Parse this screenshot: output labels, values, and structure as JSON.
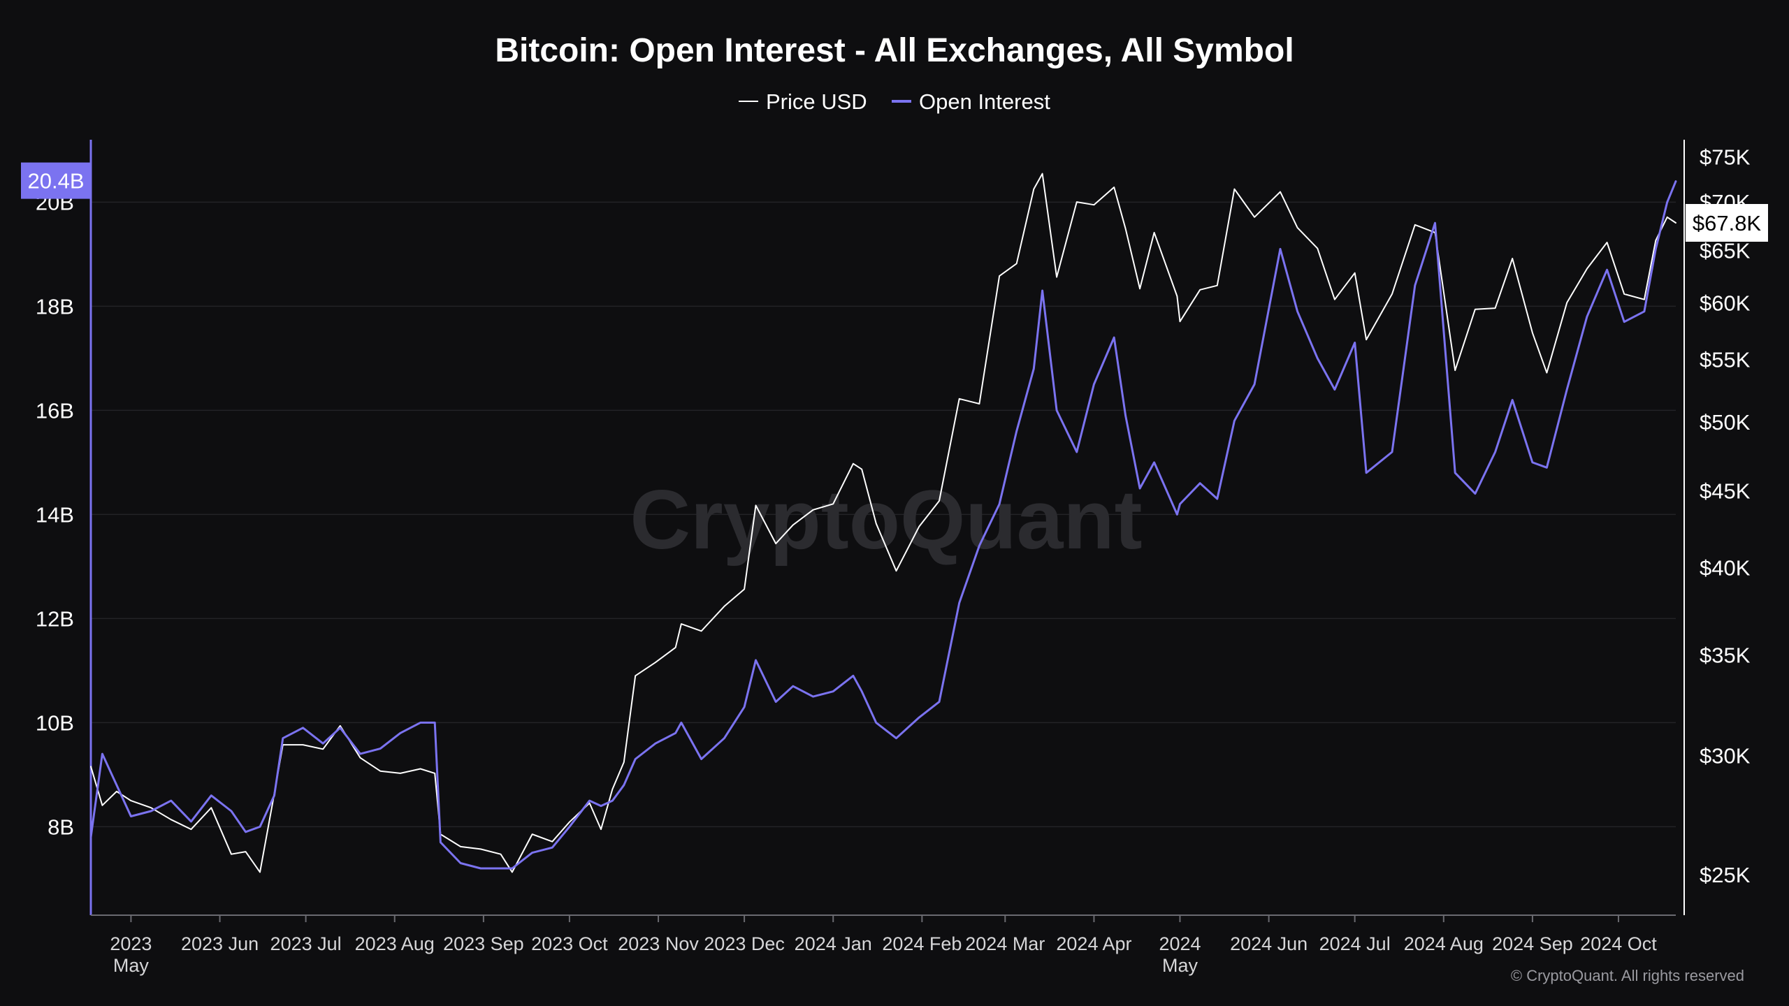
{
  "chart_data": {
    "type": "line",
    "title": "Bitcoin: Open Interest - All Exchanges, All Symbol",
    "legend": {
      "placement": "top-center",
      "entries": [
        {
          "name": "Price USD",
          "color": "#ffffff"
        },
        {
          "name": "Open Interest",
          "color": "#7b73f0"
        }
      ]
    },
    "watermark": "CryptoQuant",
    "copyright": "© CryptoQuant. All rights reserved",
    "grid": true,
    "x_axis": {
      "range": [
        "2023-04-17",
        "2024-10-21"
      ],
      "ticks": [
        {
          "date": "2023-05-01",
          "label": "2023",
          "sublabel": "May"
        },
        {
          "date": "2023-06-01",
          "label": "2023 Jun"
        },
        {
          "date": "2023-07-01",
          "label": "2023 Jul"
        },
        {
          "date": "2023-08-01",
          "label": "2023 Aug"
        },
        {
          "date": "2023-09-01",
          "label": "2023 Sep"
        },
        {
          "date": "2023-10-01",
          "label": "2023 Oct"
        },
        {
          "date": "2023-11-01",
          "label": "2023 Nov"
        },
        {
          "date": "2023-12-01",
          "label": "2023 Dec"
        },
        {
          "date": "2024-01-01",
          "label": "2024 Jan"
        },
        {
          "date": "2024-02-01",
          "label": "2024 Feb"
        },
        {
          "date": "2024-03-01",
          "label": "2024 Mar"
        },
        {
          "date": "2024-04-01",
          "label": "2024 Apr"
        },
        {
          "date": "2024-05-01",
          "label": "2024",
          "sublabel": "May"
        },
        {
          "date": "2024-06-01",
          "label": "2024 Jun"
        },
        {
          "date": "2024-07-01",
          "label": "2024 Jul"
        },
        {
          "date": "2024-08-01",
          "label": "2024 Aug"
        },
        {
          "date": "2024-09-01",
          "label": "2024 Sep"
        },
        {
          "date": "2024-10-01",
          "label": "2024 Oct"
        }
      ]
    },
    "y_left": {
      "series": "Open Interest",
      "unit": "B",
      "range": [
        6.3,
        21.2
      ],
      "ticks": [
        {
          "value": 8,
          "label": "8B"
        },
        {
          "value": 10,
          "label": "10B"
        },
        {
          "value": 12,
          "label": "12B"
        },
        {
          "value": 14,
          "label": "14B"
        },
        {
          "value": 16,
          "label": "16B"
        },
        {
          "value": 18,
          "label": "18B"
        },
        {
          "value": 20,
          "label": "20B"
        }
      ],
      "current_badge": {
        "value": 20.4,
        "label": "20.4B",
        "color": "#7b73f0"
      }
    },
    "y_right": {
      "series": "Price USD",
      "scale": "log",
      "range": [
        23500,
        77000
      ],
      "ticks": [
        {
          "value": 25000,
          "label": "$25K"
        },
        {
          "value": 30000,
          "label": "$30K"
        },
        {
          "value": 35000,
          "label": "$35K"
        },
        {
          "value": 40000,
          "label": "$40K"
        },
        {
          "value": 45000,
          "label": "$45K"
        },
        {
          "value": 50000,
          "label": "$50K"
        },
        {
          "value": 55000,
          "label": "$55K"
        },
        {
          "value": 60000,
          "label": "$60K"
        },
        {
          "value": 65000,
          "label": "$65K"
        },
        {
          "value": 70000,
          "label": "$70K"
        },
        {
          "value": 75000,
          "label": "$75K"
        }
      ],
      "current_badge": {
        "value": 67800,
        "label": "$67.8K",
        "color": "#ffffff"
      }
    },
    "series": [
      {
        "name": "Price USD",
        "axis": "right",
        "color": "#ffffff",
        "points": [
          [
            "2023-04-17",
            29500
          ],
          [
            "2023-04-21",
            27800
          ],
          [
            "2023-04-26",
            28400
          ],
          [
            "2023-05-01",
            28000
          ],
          [
            "2023-05-08",
            27700
          ],
          [
            "2023-05-15",
            27200
          ],
          [
            "2023-05-22",
            26800
          ],
          [
            "2023-05-29",
            27700
          ],
          [
            "2023-06-05",
            25800
          ],
          [
            "2023-06-10",
            25900
          ],
          [
            "2023-06-15",
            25100
          ],
          [
            "2023-06-20",
            28300
          ],
          [
            "2023-06-23",
            30500
          ],
          [
            "2023-06-30",
            30500
          ],
          [
            "2023-07-07",
            30300
          ],
          [
            "2023-07-13",
            31400
          ],
          [
            "2023-07-20",
            29900
          ],
          [
            "2023-07-27",
            29300
          ],
          [
            "2023-08-03",
            29200
          ],
          [
            "2023-08-10",
            29400
          ],
          [
            "2023-08-15",
            29200
          ],
          [
            "2023-08-17",
            26600
          ],
          [
            "2023-08-24",
            26100
          ],
          [
            "2023-08-31",
            26000
          ],
          [
            "2023-09-07",
            25800
          ],
          [
            "2023-09-11",
            25100
          ],
          [
            "2023-09-18",
            26600
          ],
          [
            "2023-09-25",
            26300
          ],
          [
            "2023-10-01",
            27100
          ],
          [
            "2023-10-08",
            27900
          ],
          [
            "2023-10-12",
            26800
          ],
          [
            "2023-10-16",
            28500
          ],
          [
            "2023-10-20",
            29700
          ],
          [
            "2023-10-24",
            33900
          ],
          [
            "2023-10-31",
            34600
          ],
          [
            "2023-11-07",
            35400
          ],
          [
            "2023-11-09",
            36700
          ],
          [
            "2023-11-16",
            36300
          ],
          [
            "2023-11-24",
            37700
          ],
          [
            "2023-12-01",
            38700
          ],
          [
            "2023-12-05",
            44000
          ],
          [
            "2023-12-12",
            41500
          ],
          [
            "2023-12-18",
            42700
          ],
          [
            "2023-12-25",
            43700
          ],
          [
            "2024-01-01",
            44100
          ],
          [
            "2024-01-08",
            46900
          ],
          [
            "2024-01-11",
            46500
          ],
          [
            "2024-01-16",
            42800
          ],
          [
            "2024-01-23",
            39800
          ],
          [
            "2024-01-31",
            42600
          ],
          [
            "2024-02-07",
            44300
          ],
          [
            "2024-02-14",
            51800
          ],
          [
            "2024-02-21",
            51400
          ],
          [
            "2024-02-28",
            62500
          ],
          [
            "2024-03-05",
            63700
          ],
          [
            "2024-03-11",
            71400
          ],
          [
            "2024-03-14",
            73100
          ],
          [
            "2024-03-19",
            62400
          ],
          [
            "2024-03-26",
            70000
          ],
          [
            "2024-04-01",
            69700
          ],
          [
            "2024-04-08",
            71600
          ],
          [
            "2024-04-12",
            67200
          ],
          [
            "2024-04-17",
            61300
          ],
          [
            "2024-04-22",
            66800
          ],
          [
            "2024-04-30",
            60600
          ],
          [
            "2024-05-01",
            58300
          ],
          [
            "2024-05-08",
            61200
          ],
          [
            "2024-05-14",
            61600
          ],
          [
            "2024-05-20",
            71400
          ],
          [
            "2024-05-27",
            68400
          ],
          [
            "2024-06-05",
            71100
          ],
          [
            "2024-06-11",
            67300
          ],
          [
            "2024-06-18",
            65200
          ],
          [
            "2024-06-24",
            60300
          ],
          [
            "2024-07-01",
            62800
          ],
          [
            "2024-07-05",
            56700
          ],
          [
            "2024-07-14",
            60800
          ],
          [
            "2024-07-22",
            67600
          ],
          [
            "2024-07-29",
            66800
          ],
          [
            "2024-08-05",
            54100
          ],
          [
            "2024-08-12",
            59400
          ],
          [
            "2024-08-19",
            59500
          ],
          [
            "2024-08-25",
            64200
          ],
          [
            "2024-09-01",
            57300
          ],
          [
            "2024-09-06",
            53900
          ],
          [
            "2024-09-13",
            60000
          ],
          [
            "2024-09-20",
            63200
          ],
          [
            "2024-09-27",
            65800
          ],
          [
            "2024-10-03",
            60800
          ],
          [
            "2024-10-10",
            60300
          ],
          [
            "2024-10-14",
            66000
          ],
          [
            "2024-10-18",
            68400
          ],
          [
            "2024-10-21",
            67800
          ]
        ]
      },
      {
        "name": "Open Interest",
        "axis": "left",
        "color": "#7b73f0",
        "points": [
          [
            "2023-04-17",
            7.8
          ],
          [
            "2023-04-21",
            9.4
          ],
          [
            "2023-04-26",
            8.8
          ],
          [
            "2023-05-01",
            8.2
          ],
          [
            "2023-05-08",
            8.3
          ],
          [
            "2023-05-15",
            8.5
          ],
          [
            "2023-05-22",
            8.1
          ],
          [
            "2023-05-29",
            8.6
          ],
          [
            "2023-06-05",
            8.3
          ],
          [
            "2023-06-10",
            7.9
          ],
          [
            "2023-06-15",
            8.0
          ],
          [
            "2023-06-20",
            8.6
          ],
          [
            "2023-06-23",
            9.7
          ],
          [
            "2023-06-30",
            9.9
          ],
          [
            "2023-07-07",
            9.6
          ],
          [
            "2023-07-13",
            9.9
          ],
          [
            "2023-07-20",
            9.4
          ],
          [
            "2023-07-27",
            9.5
          ],
          [
            "2023-08-03",
            9.8
          ],
          [
            "2023-08-10",
            10.0
          ],
          [
            "2023-08-15",
            10.0
          ],
          [
            "2023-08-17",
            7.7
          ],
          [
            "2023-08-24",
            7.3
          ],
          [
            "2023-08-31",
            7.2
          ],
          [
            "2023-09-07",
            7.2
          ],
          [
            "2023-09-11",
            7.2
          ],
          [
            "2023-09-18",
            7.5
          ],
          [
            "2023-09-25",
            7.6
          ],
          [
            "2023-10-01",
            8.0
          ],
          [
            "2023-10-08",
            8.5
          ],
          [
            "2023-10-12",
            8.4
          ],
          [
            "2023-10-16",
            8.5
          ],
          [
            "2023-10-20",
            8.8
          ],
          [
            "2023-10-24",
            9.3
          ],
          [
            "2023-10-31",
            9.6
          ],
          [
            "2023-11-07",
            9.8
          ],
          [
            "2023-11-09",
            10.0
          ],
          [
            "2023-11-16",
            9.3
          ],
          [
            "2023-11-24",
            9.7
          ],
          [
            "2023-12-01",
            10.3
          ],
          [
            "2023-12-05",
            11.2
          ],
          [
            "2023-12-12",
            10.4
          ],
          [
            "2023-12-18",
            10.7
          ],
          [
            "2023-12-25",
            10.5
          ],
          [
            "2024-01-01",
            10.6
          ],
          [
            "2024-01-08",
            10.9
          ],
          [
            "2024-01-11",
            10.6
          ],
          [
            "2024-01-16",
            10.0
          ],
          [
            "2024-01-23",
            9.7
          ],
          [
            "2024-01-31",
            10.1
          ],
          [
            "2024-02-07",
            10.4
          ],
          [
            "2024-02-14",
            12.3
          ],
          [
            "2024-02-21",
            13.4
          ],
          [
            "2024-02-28",
            14.2
          ],
          [
            "2024-03-05",
            15.6
          ],
          [
            "2024-03-11",
            16.8
          ],
          [
            "2024-03-14",
            18.3
          ],
          [
            "2024-03-19",
            16.0
          ],
          [
            "2024-03-26",
            15.2
          ],
          [
            "2024-04-01",
            16.5
          ],
          [
            "2024-04-08",
            17.4
          ],
          [
            "2024-04-12",
            15.9
          ],
          [
            "2024-04-17",
            14.5
          ],
          [
            "2024-04-22",
            15.0
          ],
          [
            "2024-04-30",
            14.0
          ],
          [
            "2024-05-01",
            14.2
          ],
          [
            "2024-05-08",
            14.6
          ],
          [
            "2024-05-14",
            14.3
          ],
          [
            "2024-05-20",
            15.8
          ],
          [
            "2024-05-27",
            16.5
          ],
          [
            "2024-06-05",
            19.1
          ],
          [
            "2024-06-11",
            17.9
          ],
          [
            "2024-06-18",
            17.0
          ],
          [
            "2024-06-24",
            16.4
          ],
          [
            "2024-07-01",
            17.3
          ],
          [
            "2024-07-05",
            14.8
          ],
          [
            "2024-07-14",
            15.2
          ],
          [
            "2024-07-22",
            18.4
          ],
          [
            "2024-07-29",
            19.6
          ],
          [
            "2024-08-05",
            14.8
          ],
          [
            "2024-08-12",
            14.4
          ],
          [
            "2024-08-19",
            15.2
          ],
          [
            "2024-08-25",
            16.2
          ],
          [
            "2024-09-01",
            15.0
          ],
          [
            "2024-09-06",
            14.9
          ],
          [
            "2024-09-13",
            16.4
          ],
          [
            "2024-09-20",
            17.8
          ],
          [
            "2024-09-27",
            18.7
          ],
          [
            "2024-10-03",
            17.7
          ],
          [
            "2024-10-10",
            17.9
          ],
          [
            "2024-10-14",
            19.1
          ],
          [
            "2024-10-18",
            20.0
          ],
          [
            "2024-10-21",
            20.4
          ]
        ]
      }
    ]
  }
}
